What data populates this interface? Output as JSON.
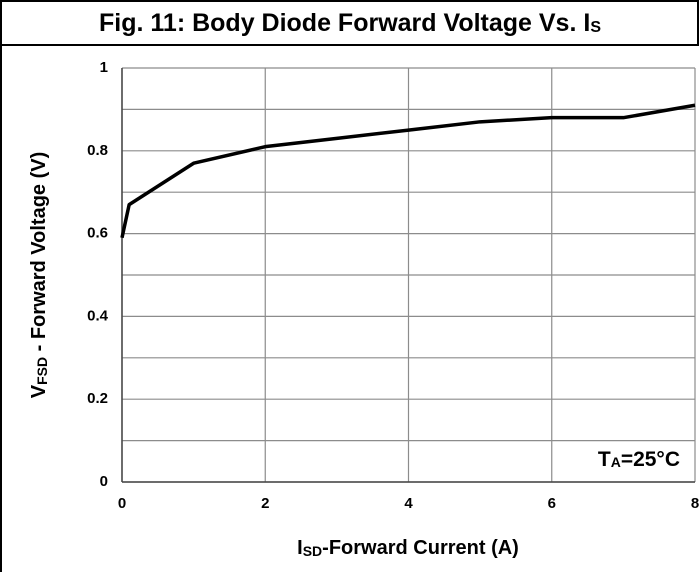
{
  "chart_data": {
    "type": "line",
    "title": [
      "Fig. 11: Body Diode Forward Voltage Vs. I",
      "S"
    ],
    "xlabel": [
      "I",
      "SD",
      "-Forward Current (A)"
    ],
    "ylabel": [
      "V",
      "FSD",
      " - Forward Voltage (V)"
    ],
    "annotation": [
      "T",
      "A",
      "=25°C"
    ],
    "series": [
      {
        "color": "#000000",
        "x": [
          0,
          0.1,
          1,
          2,
          3,
          4,
          5,
          6,
          7,
          8
        ],
        "values": [
          0.59,
          0.67,
          0.77,
          0.81,
          0.83,
          0.85,
          0.87,
          0.88,
          0.88,
          0.91
        ]
      }
    ],
    "xlim": [
      0,
      8
    ],
    "xticks": [
      0,
      2,
      4,
      6,
      8
    ],
    "ylim": [
      0,
      1
    ],
    "yticks": [
      0,
      {
        "value": 0.2,
        "label": "0.2"
      },
      {
        "value": 0.4,
        "label": "0.4"
      },
      {
        "value": 0.6,
        "label": "0.6"
      },
      {
        "value": 0.8,
        "label": "0.8"
      },
      1
    ],
    "yminor": [
      0.1,
      0.3,
      0.5,
      0.7,
      0.9
    ],
    "grid": true
  }
}
